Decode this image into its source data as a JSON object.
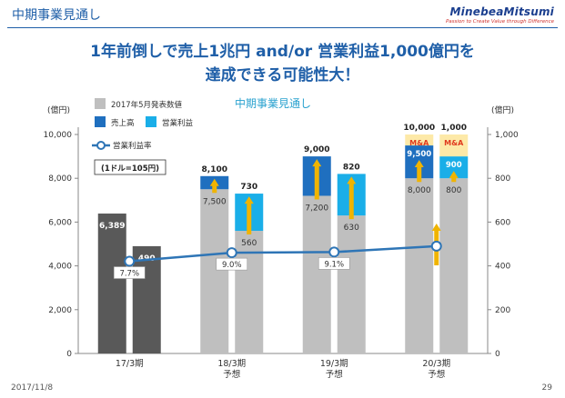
{
  "header": {
    "title": "中期事業見通し",
    "logo_name": "MinebeaMitsumi",
    "logo_tagline": "Passion to Create Value through Difference"
  },
  "headline": {
    "line1": "1年前倒しで売上1兆円 and/or 営業利益1,000億円を",
    "line2": "達成できる可能性大！"
  },
  "footer": {
    "date": "2017/11/8",
    "page": "29"
  },
  "colors": {
    "actual": "#595959",
    "baseline": "#bfbfbf",
    "sales_increment": "#1f6fbf",
    "profit_increment": "#1aaee8",
    "ma": "#fde9a8",
    "line": "#2e75b6",
    "arrow": "#f0b400"
  },
  "chart_data": {
    "type": "bar",
    "title": "中期事業見通し",
    "left_axis_unit": "(億円)",
    "right_axis_unit": "(億円)",
    "left_ylim": [
      0,
      10000
    ],
    "right_ylim": [
      0,
      1000
    ],
    "left_ticks": [
      "0",
      "2,000",
      "4,000",
      "6,000",
      "8,000",
      "10,000"
    ],
    "right_ticks": [
      "0",
      "200",
      "400",
      "600",
      "800",
      "1,000"
    ],
    "categories": [
      "17/3期",
      "18/3期\n予想",
      "19/3期\n予想",
      "20/3期\n予想"
    ],
    "legend": {
      "baseline": "2017年5月発表数値",
      "sales": "売上高",
      "profit": "営業利益",
      "margin": "営業利益率"
    },
    "exchange_rate_note": "(1ドル=105円)",
    "series": [
      {
        "name": "売上高",
        "axis": "left",
        "values": [
          6389,
          8100,
          9000,
          10000
        ],
        "baseline": [
          null,
          7500,
          7200,
          8000
        ],
        "ma_from": [
          null,
          null,
          null,
          9500
        ],
        "labels": [
          "6,389",
          "8,100",
          "9,000",
          "10,000"
        ],
        "baseline_labels": [
          "",
          "7,500",
          "7,200",
          "8,000"
        ],
        "ma_labels": [
          "",
          "",
          "",
          "9,500"
        ]
      },
      {
        "name": "営業利益",
        "axis": "right",
        "values": [
          490,
          730,
          820,
          1000
        ],
        "baseline": [
          null,
          560,
          630,
          800
        ],
        "ma_from": [
          null,
          null,
          null,
          900
        ],
        "labels": [
          "490",
          "730",
          "820",
          "1,000"
        ],
        "baseline_labels": [
          "",
          "560",
          "630",
          "800"
        ],
        "ma_labels": [
          "",
          "",
          "",
          "900"
        ]
      }
    ],
    "ma_label": "M&A",
    "line": {
      "name": "営業利益率",
      "values": [
        7.7,
        9.0,
        9.1,
        10.0
      ],
      "labels": [
        "7.7%",
        "9.0%",
        "9.1%",
        ""
      ]
    },
    "grid": false
  }
}
